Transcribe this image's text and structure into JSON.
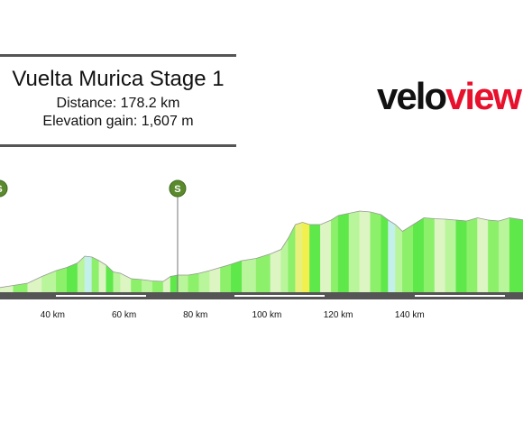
{
  "header": {
    "title": "Vuelta Murica Stage 1",
    "distance": "Distance: 178.2 km",
    "elevation_gain": "Elevation gain: 1,607 m"
  },
  "logo": {
    "part1": "velo",
    "part2": "view"
  },
  "colors": {
    "road": "#555555",
    "sprint_badge": "#5b8a2e",
    "profile_outline": "#999999",
    "gradient_scale": [
      "#dcf5c2",
      "#b9f59a",
      "#8cf06a",
      "#5fe84a",
      "#e6f07a",
      "#f2f04e",
      "#c4f0ec"
    ]
  },
  "markers": [
    {
      "label": "S",
      "type": "sprint",
      "km": 25
    },
    {
      "label": "S",
      "type": "sprint",
      "km": 75
    }
  ],
  "chart_data": {
    "type": "area",
    "x_unit": "km",
    "xlim": [
      25,
      172
    ],
    "xticks": [
      40,
      60,
      80,
      100,
      120,
      140
    ],
    "xtick_labels": [
      "40 km",
      "60 km",
      "80 km",
      "100 km",
      "120 km",
      "140 km"
    ],
    "ylabel": "",
    "series": [
      {
        "x": [
          25,
          29,
          33,
          37,
          41,
          44,
          47,
          49,
          51,
          53,
          55,
          57,
          59,
          62,
          65,
          68,
          71,
          73,
          75,
          78,
          81,
          84,
          87,
          90,
          93,
          97,
          101,
          104,
          106,
          108,
          110,
          112,
          115,
          118,
          120,
          123,
          126,
          129,
          132,
          134,
          136,
          138,
          141,
          144,
          147,
          150,
          153,
          156,
          159,
          162,
          165,
          168,
          172
        ],
        "elevation": [
          10,
          15,
          20,
          35,
          48,
          55,
          65,
          80,
          78,
          70,
          60,
          45,
          42,
          30,
          28,
          25,
          24,
          35,
          38,
          38,
          42,
          48,
          55,
          62,
          70,
          75,
          85,
          95,
          120,
          150,
          155,
          150,
          150,
          160,
          170,
          175,
          180,
          178,
          172,
          160,
          150,
          135,
          150,
          165,
          163,
          162,
          160,
          158,
          165,
          160,
          158,
          165,
          160
        ],
        "gradient_class": [
          0,
          2,
          0,
          1,
          2,
          3,
          1,
          6,
          2,
          0,
          3,
          1,
          0,
          2,
          1,
          2,
          0,
          3,
          1,
          2,
          1,
          0,
          2,
          3,
          1,
          2,
          0,
          1,
          2,
          4,
          5,
          3,
          0,
          2,
          3,
          1,
          0,
          2,
          3,
          6,
          1,
          2,
          3,
          2,
          0,
          1,
          3,
          2,
          0,
          2,
          1,
          3
        ]
      }
    ],
    "ylim": [
      0,
      200
    ]
  }
}
